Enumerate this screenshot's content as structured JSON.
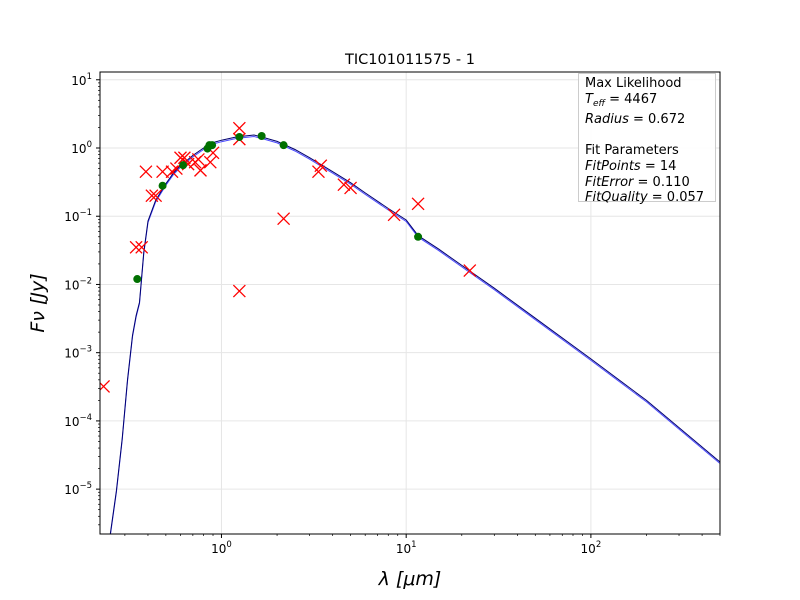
{
  "chart_data": {
    "type": "scatter",
    "title": "TIC101011575 - 1",
    "xlabel": "λ [μm]",
    "ylabel": "Fν [Jy]",
    "xscale": "log",
    "yscale": "log",
    "xlim": [
      0.22,
      500
    ],
    "ylim": [
      2.2e-06,
      13
    ],
    "grid": true,
    "x_ticks": [
      {
        "value": 1,
        "base": "10",
        "exp": "0"
      },
      {
        "value": 10,
        "base": "10",
        "exp": "1"
      },
      {
        "value": 100,
        "base": "10",
        "exp": "2"
      }
    ],
    "y_ticks": [
      {
        "value": 1e-05,
        "base": "10",
        "exp": "−5"
      },
      {
        "value": 0.0001,
        "base": "10",
        "exp": "−4"
      },
      {
        "value": 0.001,
        "base": "10",
        "exp": "−3"
      },
      {
        "value": 0.01,
        "base": "10",
        "exp": "−2"
      },
      {
        "value": 0.1,
        "base": "10",
        "exp": "−1"
      },
      {
        "value": 1,
        "base": "10",
        "exp": "0"
      },
      {
        "value": 10,
        "base": "10",
        "exp": "1"
      }
    ],
    "colors": {
      "observed": "#ff0000",
      "fitted": "#007000",
      "model": "#00006e",
      "model_alt": "#4a4aff"
    },
    "series": [
      {
        "marker": "x",
        "points": [
          [
            0.23,
            0.00032
          ],
          [
            0.345,
            0.035
          ],
          [
            0.37,
            0.035
          ],
          [
            0.39,
            0.45
          ],
          [
            0.42,
            0.2
          ],
          [
            0.44,
            0.2
          ],
          [
            0.48,
            0.45
          ],
          [
            0.54,
            0.45
          ],
          [
            0.57,
            0.5
          ],
          [
            0.6,
            0.72
          ],
          [
            0.63,
            0.72
          ],
          [
            0.66,
            0.58
          ],
          [
            0.72,
            0.62
          ],
          [
            0.75,
            0.68
          ],
          [
            0.77,
            0.47
          ],
          [
            0.87,
            0.62
          ],
          [
            0.9,
            0.85
          ],
          [
            1.25,
            1.95
          ],
          [
            1.25,
            1.35
          ],
          [
            1.25,
            0.008
          ],
          [
            2.17,
            0.092
          ],
          [
            3.35,
            0.45
          ],
          [
            3.45,
            0.55
          ],
          [
            4.6,
            0.29
          ],
          [
            5.0,
            0.26
          ],
          [
            8.6,
            0.105
          ],
          [
            11.6,
            0.152
          ],
          [
            22.1,
            0.016
          ]
        ]
      },
      {
        "marker": "o",
        "points": [
          [
            0.35,
            0.012
          ],
          [
            0.48,
            0.28
          ],
          [
            0.62,
            0.56
          ],
          [
            0.84,
            0.98
          ],
          [
            0.86,
            1.1
          ],
          [
            0.89,
            1.1
          ],
          [
            1.25,
            1.45
          ],
          [
            1.65,
            1.5
          ],
          [
            2.17,
            1.1
          ],
          [
            11.6,
            0.05
          ]
        ]
      }
    ],
    "model_curve": [
      [
        0.36,
        0.0055
      ],
      [
        0.38,
        0.03
      ],
      [
        0.4,
        0.085
      ],
      [
        0.44,
        0.17
      ],
      [
        0.5,
        0.3
      ],
      [
        0.55,
        0.43
      ],
      [
        0.6,
        0.55
      ],
      [
        0.7,
        0.78
      ],
      [
        0.8,
        1.0
      ],
      [
        0.9,
        1.2
      ],
      [
        1.0,
        1.3
      ],
      [
        1.2,
        1.45
      ],
      [
        1.5,
        1.55
      ],
      [
        1.7,
        1.42
      ],
      [
        2.0,
        1.25
      ],
      [
        2.5,
        0.95
      ],
      [
        3.0,
        0.72
      ],
      [
        4.0,
        0.45
      ],
      [
        5.0,
        0.31
      ],
      [
        6.0,
        0.22
      ],
      [
        8.0,
        0.13
      ],
      [
        10.0,
        0.088
      ],
      [
        11.6,
        0.052
      ],
      [
        15.0,
        0.033
      ],
      [
        20.0,
        0.019
      ],
      [
        30.0,
        0.0088
      ],
      [
        50.0,
        0.0032
      ],
      [
        100.0,
        0.00081
      ],
      [
        200.0,
        0.0002
      ],
      [
        500.0,
        2.5e-05
      ]
    ],
    "model_curve_uv": [
      [
        0.25,
        2.2e-06
      ],
      [
        0.27,
        9.5e-06
      ],
      [
        0.29,
        5.5e-05
      ],
      [
        0.31,
        0.0004
      ],
      [
        0.33,
        0.0018
      ],
      [
        0.345,
        0.0035
      ],
      [
        0.36,
        0.0055
      ]
    ]
  },
  "legend": {
    "heading1": " Max Likelihood",
    "teff_symbol": "T",
    "teff_sub": "eff",
    "teff_value": " = 4467",
    "radius_label": "Radius",
    "radius_value": " = 0.672",
    "heading2": " Fit Parameters",
    "fitpoints_label": "FitPoints",
    "fitpoints_value": " = 14",
    "fiterror_label": "FitError",
    "fiterror_value": " = 0.110",
    "fitquality_label": "FitQuality",
    "fitquality_value": " = 0.057"
  }
}
